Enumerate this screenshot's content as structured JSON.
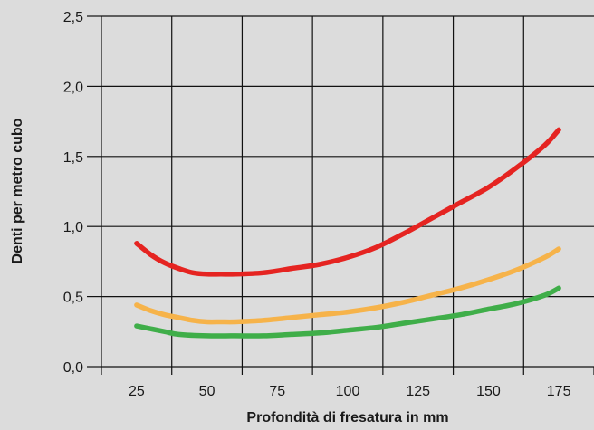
{
  "chart_data": {
    "type": "line",
    "xlabel": "Profondità di fresatura in mm",
    "ylabel": "Denti per metro cubo",
    "x_ticks": [
      "25",
      "50",
      "75",
      "100",
      "125",
      "150",
      "175"
    ],
    "y_ticks": [
      "0,0",
      "0,5",
      "1,0",
      "1,5",
      "2,0",
      "2,5"
    ],
    "xlim": [
      12.5,
      187.5
    ],
    "ylim": [
      0,
      2.5
    ],
    "grid": true,
    "series": [
      {
        "color": "#e52421",
        "points": [
          [
            25,
            0.88
          ],
          [
            30,
            0.8
          ],
          [
            35,
            0.74
          ],
          [
            40,
            0.7
          ],
          [
            45,
            0.67
          ],
          [
            50,
            0.66
          ],
          [
            55,
            0.66
          ],
          [
            60,
            0.66
          ],
          [
            70,
            0.67
          ],
          [
            80,
            0.7
          ],
          [
            90,
            0.73
          ],
          [
            100,
            0.78
          ],
          [
            110,
            0.85
          ],
          [
            120,
            0.95
          ],
          [
            130,
            1.06
          ],
          [
            140,
            1.17
          ],
          [
            150,
            1.28
          ],
          [
            160,
            1.42
          ],
          [
            170,
            1.58
          ],
          [
            175,
            1.69
          ]
        ]
      },
      {
        "color": "#f6b34a",
        "points": [
          [
            25,
            0.44
          ],
          [
            30,
            0.4
          ],
          [
            35,
            0.37
          ],
          [
            40,
            0.35
          ],
          [
            45,
            0.33
          ],
          [
            50,
            0.32
          ],
          [
            55,
            0.32
          ],
          [
            60,
            0.32
          ],
          [
            70,
            0.33
          ],
          [
            80,
            0.35
          ],
          [
            90,
            0.37
          ],
          [
            100,
            0.39
          ],
          [
            110,
            0.42
          ],
          [
            120,
            0.46
          ],
          [
            130,
            0.51
          ],
          [
            140,
            0.56
          ],
          [
            150,
            0.62
          ],
          [
            160,
            0.69
          ],
          [
            170,
            0.78
          ],
          [
            175,
            0.84
          ]
        ]
      },
      {
        "color": "#3fae49",
        "points": [
          [
            25,
            0.29
          ],
          [
            30,
            0.27
          ],
          [
            35,
            0.25
          ],
          [
            40,
            0.23
          ],
          [
            50,
            0.22
          ],
          [
            60,
            0.22
          ],
          [
            70,
            0.22
          ],
          [
            80,
            0.23
          ],
          [
            90,
            0.24
          ],
          [
            100,
            0.26
          ],
          [
            110,
            0.28
          ],
          [
            120,
            0.31
          ],
          [
            130,
            0.34
          ],
          [
            140,
            0.37
          ],
          [
            150,
            0.41
          ],
          [
            160,
            0.45
          ],
          [
            170,
            0.51
          ],
          [
            175,
            0.56
          ]
        ]
      }
    ]
  }
}
